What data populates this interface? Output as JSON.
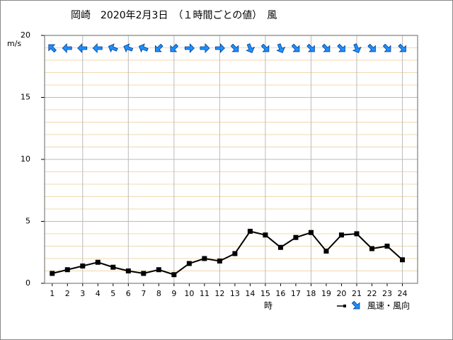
{
  "chart_data": {
    "type": "line",
    "title": "岡崎　2020年2月3日　（１時間ごとの値）　風",
    "y_label": "m/s",
    "x_label": "時",
    "legend": "風速・風向",
    "x": [
      1,
      2,
      3,
      4,
      5,
      6,
      7,
      8,
      9,
      10,
      11,
      12,
      13,
      14,
      15,
      16,
      17,
      18,
      19,
      20,
      21,
      22,
      23,
      24
    ],
    "xlim": [
      0.5,
      25
    ],
    "xticks": [
      1,
      2,
      3,
      4,
      5,
      6,
      7,
      8,
      9,
      10,
      11,
      12,
      13,
      14,
      15,
      16,
      17,
      18,
      19,
      20,
      21,
      22,
      23,
      24
    ],
    "ylim": [
      0,
      20
    ],
    "yticks": [
      0,
      5,
      10,
      15,
      20
    ],
    "series": [
      {
        "name": "風速",
        "color": "#000000",
        "values": [
          0.8,
          1.1,
          1.4,
          1.7,
          1.3,
          1.0,
          0.8,
          1.1,
          0.7,
          1.6,
          2.0,
          1.8,
          2.4,
          4.2,
          3.9,
          2.9,
          3.7,
          4.1,
          2.6,
          3.9,
          4.0,
          2.8,
          3.0,
          1.9
        ]
      },
      {
        "name": "風向",
        "color": "#1e90ff",
        "values": [
          135,
          90,
          90,
          90,
          112.5,
          112.5,
          112.5,
          45,
          45,
          270,
          270,
          270,
          315,
          337.5,
          315,
          337.5,
          315,
          315,
          315,
          315,
          337.5,
          315,
          315,
          315
        ]
      }
    ],
    "grid": true
  }
}
